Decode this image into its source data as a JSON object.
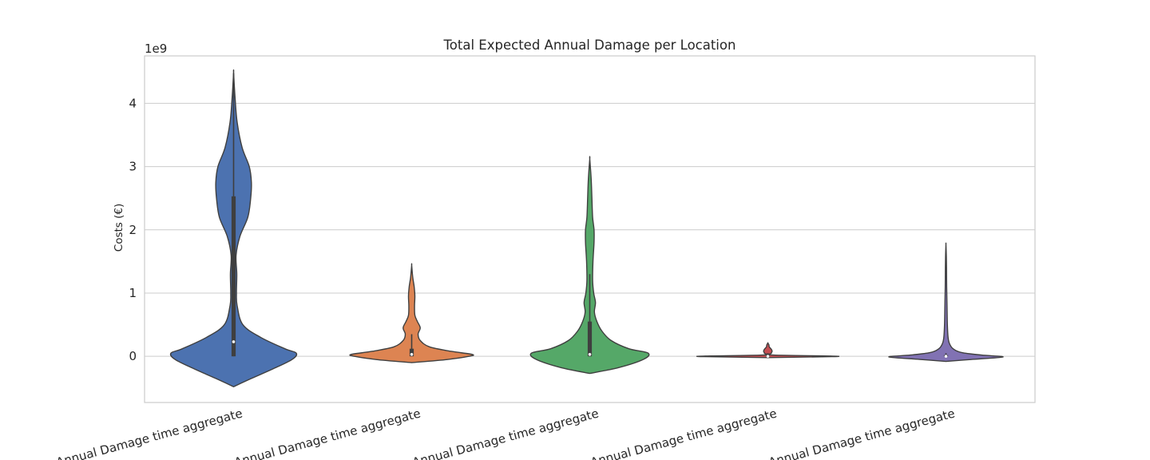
{
  "chart_data": {
    "type": "violin",
    "title": "Total Expected Annual Damage per Location",
    "ylabel": "Costs (€)",
    "xlabel": "",
    "y_multiplier_label": "1e9",
    "ylim": [
      -0.73,
      4.75
    ],
    "yticks": [
      0,
      1,
      2,
      3,
      4
    ],
    "grid": "horizontal",
    "categories": [
      "Annual Damage time aggregate",
      "Annual Damage time aggregate",
      "Annual Damage time aggregate",
      "Annual Damage time aggregate",
      "Annual Damage time aggregate"
    ],
    "series": [
      {
        "color": "#4c72b0",
        "box": {
          "q1": 0.0,
          "median": 0.23,
          "q3": 2.53,
          "whisker_low": 0.0,
          "whisker_high": 4.48
        },
        "density_profile": [
          [
            -0.48,
            0.0
          ],
          [
            -0.35,
            0.25
          ],
          [
            -0.2,
            0.55
          ],
          [
            -0.05,
            0.82
          ],
          [
            0.05,
            0.88
          ],
          [
            0.12,
            0.72
          ],
          [
            0.3,
            0.38
          ],
          [
            0.5,
            0.13
          ],
          [
            0.8,
            0.05
          ],
          [
            1.0,
            0.04
          ],
          [
            1.3,
            0.045
          ],
          [
            1.6,
            0.035
          ],
          [
            1.9,
            0.09
          ],
          [
            2.2,
            0.2
          ],
          [
            2.5,
            0.24
          ],
          [
            2.75,
            0.25
          ],
          [
            3.0,
            0.22
          ],
          [
            3.3,
            0.12
          ],
          [
            3.7,
            0.05
          ],
          [
            4.1,
            0.02
          ],
          [
            4.48,
            0.0
          ]
        ]
      },
      {
        "color": "#dd8452",
        "box": {
          "q1": 0.0,
          "median": 0.03,
          "q3": 0.12,
          "whisker_low": 0.0,
          "whisker_high": 0.35
        },
        "density_profile": [
          [
            -0.1,
            0.0
          ],
          [
            -0.05,
            0.5
          ],
          [
            0.0,
            0.8
          ],
          [
            0.03,
            0.85
          ],
          [
            0.08,
            0.55
          ],
          [
            0.15,
            0.25
          ],
          [
            0.25,
            0.12
          ],
          [
            0.35,
            0.09
          ],
          [
            0.45,
            0.12
          ],
          [
            0.55,
            0.08
          ],
          [
            0.65,
            0.045
          ],
          [
            0.8,
            0.04
          ],
          [
            0.95,
            0.045
          ],
          [
            1.1,
            0.035
          ],
          [
            1.25,
            0.015
          ],
          [
            1.44,
            0.0
          ]
        ]
      },
      {
        "color": "#55a868",
        "box": {
          "q1": 0.0,
          "median": 0.03,
          "q3": 0.55,
          "whisker_low": 0.0,
          "whisker_high": 1.3
        },
        "density_profile": [
          [
            -0.27,
            0.0
          ],
          [
            -0.18,
            0.4
          ],
          [
            -0.05,
            0.75
          ],
          [
            0.05,
            0.82
          ],
          [
            0.12,
            0.55
          ],
          [
            0.25,
            0.3
          ],
          [
            0.4,
            0.17
          ],
          [
            0.55,
            0.1
          ],
          [
            0.7,
            0.065
          ],
          [
            0.85,
            0.08
          ],
          [
            1.0,
            0.055
          ],
          [
            1.2,
            0.04
          ],
          [
            1.5,
            0.045
          ],
          [
            1.8,
            0.06
          ],
          [
            2.0,
            0.06
          ],
          [
            2.2,
            0.04
          ],
          [
            2.5,
            0.03
          ],
          [
            2.8,
            0.02
          ],
          [
            3.12,
            0.0
          ]
        ]
      },
      {
        "color": "#c44e52",
        "box": {
          "q1": 0.0,
          "median": 0.0,
          "q3": 0.02,
          "whisker_low": 0.0,
          "whisker_high": 0.05
        },
        "density_profile": [
          [
            -0.02,
            0.0
          ],
          [
            -0.005,
            0.9
          ],
          [
            0.005,
            0.88
          ],
          [
            0.02,
            0.08
          ],
          [
            0.05,
            0.05
          ],
          [
            0.08,
            0.06
          ],
          [
            0.11,
            0.05
          ],
          [
            0.15,
            0.02
          ],
          [
            0.18,
            0.015
          ],
          [
            0.21,
            0.0
          ]
        ]
      },
      {
        "color": "#8172b3",
        "box": {
          "q1": 0.0,
          "median": 0.0,
          "q3": 0.02,
          "whisker_low": 0.0,
          "whisker_high": 0.05
        },
        "density_profile": [
          [
            -0.08,
            0.0
          ],
          [
            -0.05,
            0.35
          ],
          [
            -0.01,
            0.8
          ],
          [
            0.02,
            0.5
          ],
          [
            0.06,
            0.22
          ],
          [
            0.12,
            0.1
          ],
          [
            0.2,
            0.05
          ],
          [
            0.3,
            0.03
          ],
          [
            0.5,
            0.02
          ],
          [
            0.8,
            0.015
          ],
          [
            1.1,
            0.01
          ],
          [
            1.4,
            0.008
          ],
          [
            1.6,
            0.005
          ],
          [
            1.77,
            0.0
          ]
        ]
      }
    ]
  }
}
